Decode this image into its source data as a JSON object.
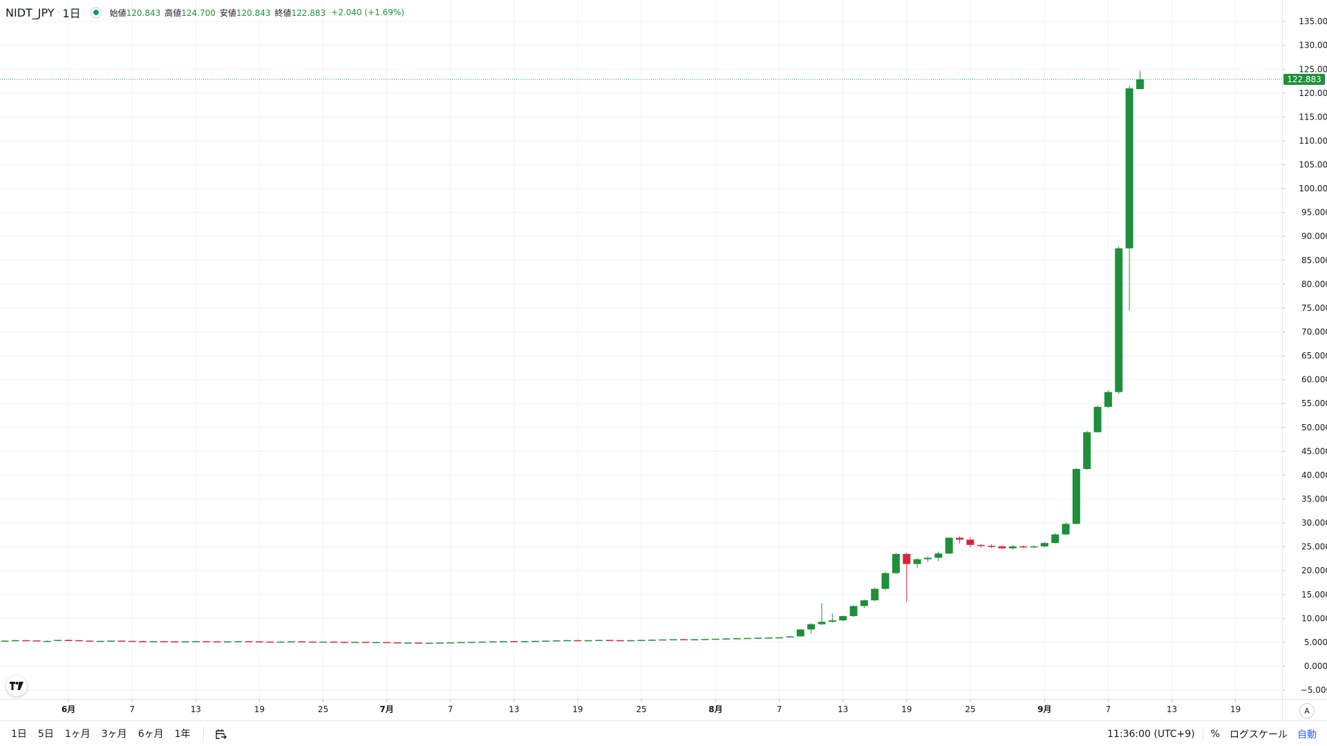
{
  "legend": {
    "symbol": "NIDT_JPY",
    "separator": "·",
    "interval": "1日",
    "open_label": "始値",
    "open_value": "120.843",
    "high_label": "高値",
    "high_value": "124.700",
    "low_label": "安値",
    "low_value": "120.843",
    "close_label": "終値",
    "close_value": "122.883",
    "change": "+2.040 (+1.69%)"
  },
  "colors": {
    "up": "#1e8f3a",
    "down": "#d7263d",
    "grid": "#f0f3fa",
    "axis_text": "#131722",
    "last_price": "#1e8f3a"
  },
  "bottom_bar": {
    "ranges": [
      "1日",
      "5日",
      "1ヶ月",
      "3ヶ月",
      "6ヶ月",
      "1年"
    ],
    "calendar_icon": "calendar-range-icon",
    "time": "11:36:00 (UTC+9)",
    "percent": "%",
    "log_scale": "ログスケール",
    "auto": "自動"
  },
  "axis_auto_label": "A",
  "chart_data": {
    "type": "candlestick",
    "title": "",
    "ylim": [
      -6,
      138
    ],
    "y_ticks": [
      "135.000",
      "130.000",
      "125.000",
      "120.000",
      "115.000",
      "110.000",
      "105.000",
      "100.000",
      "95.000",
      "90.000",
      "85.000",
      "80.000",
      "75.000",
      "70.000",
      "65.000",
      "60.000",
      "55.000",
      "50.000",
      "45.000",
      "40.000",
      "35.000",
      "30.000",
      "25.000",
      "20.000",
      "15.000",
      "10.000",
      "5.000",
      "0.000",
      "−5.000"
    ],
    "y_tick_values": [
      135,
      130,
      125,
      120,
      115,
      110,
      105,
      100,
      95,
      90,
      85,
      80,
      75,
      70,
      65,
      60,
      55,
      50,
      45,
      40,
      35,
      30,
      25,
      20,
      15,
      10,
      5,
      0,
      -5
    ],
    "x_ticks": [
      {
        "label": "6月",
        "index": 6,
        "bold": true
      },
      {
        "label": "7",
        "index": 12,
        "bold": false
      },
      {
        "label": "13",
        "index": 18,
        "bold": false
      },
      {
        "label": "19",
        "index": 24,
        "bold": false
      },
      {
        "label": "25",
        "index": 30,
        "bold": false
      },
      {
        "label": "7月",
        "index": 36,
        "bold": true
      },
      {
        "label": "7",
        "index": 42,
        "bold": false
      },
      {
        "label": "13",
        "index": 48,
        "bold": false
      },
      {
        "label": "19",
        "index": 54,
        "bold": false
      },
      {
        "label": "25",
        "index": 60,
        "bold": false
      },
      {
        "label": "8月",
        "index": 67,
        "bold": true
      },
      {
        "label": "7",
        "index": 73,
        "bold": false
      },
      {
        "label": "13",
        "index": 79,
        "bold": false
      },
      {
        "label": "19",
        "index": 85,
        "bold": false
      },
      {
        "label": "25",
        "index": 91,
        "bold": false
      },
      {
        "label": "9月",
        "index": 98,
        "bold": true
      },
      {
        "label": "7",
        "index": 104,
        "bold": false
      },
      {
        "label": "13",
        "index": 110,
        "bold": false
      },
      {
        "label": "19",
        "index": 116,
        "bold": false
      }
    ],
    "last_price": 122.883,
    "last_price_label": "122.883",
    "candles": [
      [
        5.3,
        5.4,
        5.1,
        5.35
      ],
      [
        5.35,
        5.5,
        5.25,
        5.45
      ],
      [
        5.45,
        5.5,
        5.3,
        5.4
      ],
      [
        5.4,
        5.45,
        5.2,
        5.25
      ],
      [
        5.25,
        5.35,
        5.15,
        5.3
      ],
      [
        5.3,
        5.55,
        5.25,
        5.5
      ],
      [
        5.5,
        5.6,
        5.4,
        5.45
      ],
      [
        5.45,
        5.5,
        5.3,
        5.35
      ],
      [
        5.35,
        5.4,
        5.2,
        5.25
      ],
      [
        5.25,
        5.35,
        5.2,
        5.3
      ],
      [
        5.3,
        5.4,
        5.2,
        5.35
      ],
      [
        5.35,
        5.4,
        5.25,
        5.3
      ],
      [
        5.3,
        5.35,
        5.2,
        5.25
      ],
      [
        5.25,
        5.3,
        5.15,
        5.2
      ],
      [
        5.2,
        5.3,
        5.1,
        5.25
      ],
      [
        5.25,
        5.3,
        5.15,
        5.2
      ],
      [
        5.2,
        5.25,
        5.1,
        5.15
      ],
      [
        5.15,
        5.25,
        5.1,
        5.2
      ],
      [
        5.2,
        5.3,
        5.1,
        5.25
      ],
      [
        5.25,
        5.3,
        5.15,
        5.2
      ],
      [
        5.2,
        5.25,
        5.1,
        5.15
      ],
      [
        5.15,
        5.25,
        5.1,
        5.2
      ],
      [
        5.2,
        5.3,
        5.15,
        5.25
      ],
      [
        5.25,
        5.3,
        5.15,
        5.2
      ],
      [
        5.2,
        5.25,
        5.1,
        5.15
      ],
      [
        5.15,
        5.2,
        5.05,
        5.1
      ],
      [
        5.1,
        5.2,
        5.05,
        5.15
      ],
      [
        5.15,
        5.25,
        5.1,
        5.2
      ],
      [
        5.2,
        5.25,
        5.1,
        5.15
      ],
      [
        5.15,
        5.2,
        5.05,
        5.1
      ],
      [
        5.1,
        5.2,
        5.05,
        5.15
      ],
      [
        5.15,
        5.2,
        5.05,
        5.1
      ],
      [
        5.1,
        5.15,
        5.0,
        5.05
      ],
      [
        5.05,
        5.15,
        5.0,
        5.1
      ],
      [
        5.1,
        5.15,
        4.95,
        5.0
      ],
      [
        5.0,
        5.1,
        4.9,
        5.05
      ],
      [
        5.05,
        5.1,
        4.95,
        5.0
      ],
      [
        5.0,
        5.05,
        4.85,
        4.9
      ],
      [
        4.9,
        5.0,
        4.85,
        4.95
      ],
      [
        4.95,
        5.0,
        4.8,
        4.85
      ],
      [
        4.85,
        4.95,
        4.8,
        4.9
      ],
      [
        4.9,
        5.0,
        4.85,
        4.95
      ],
      [
        4.95,
        5.05,
        4.9,
        5.0
      ],
      [
        5.0,
        5.1,
        4.95,
        5.05
      ],
      [
        5.05,
        5.15,
        5.0,
        5.1
      ],
      [
        5.1,
        5.2,
        5.05,
        5.15
      ],
      [
        5.15,
        5.25,
        5.1,
        5.2
      ],
      [
        5.2,
        5.3,
        5.15,
        5.25
      ],
      [
        5.25,
        5.3,
        5.15,
        5.2
      ],
      [
        5.2,
        5.3,
        5.15,
        5.25
      ],
      [
        5.25,
        5.35,
        5.2,
        5.3
      ],
      [
        5.3,
        5.4,
        5.25,
        5.35
      ],
      [
        5.35,
        5.45,
        5.3,
        5.4
      ],
      [
        5.4,
        5.5,
        5.35,
        5.45
      ],
      [
        5.45,
        5.5,
        5.35,
        5.4
      ],
      [
        5.4,
        5.5,
        5.35,
        5.45
      ],
      [
        5.45,
        5.55,
        5.4,
        5.5
      ],
      [
        5.5,
        5.55,
        5.4,
        5.45
      ],
      [
        5.45,
        5.5,
        5.35,
        5.4
      ],
      [
        5.4,
        5.5,
        5.35,
        5.45
      ],
      [
        5.45,
        5.55,
        5.4,
        5.5
      ],
      [
        5.5,
        5.6,
        5.45,
        5.55
      ],
      [
        5.55,
        5.65,
        5.5,
        5.6
      ],
      [
        5.6,
        5.7,
        5.55,
        5.65
      ],
      [
        5.65,
        5.7,
        5.55,
        5.6
      ],
      [
        5.6,
        5.7,
        5.55,
        5.65
      ],
      [
        5.65,
        5.75,
        5.6,
        5.7
      ],
      [
        5.7,
        5.8,
        5.65,
        5.75
      ],
      [
        5.75,
        5.85,
        5.7,
        5.8
      ],
      [
        5.8,
        5.9,
        5.75,
        5.85
      ],
      [
        5.85,
        5.95,
        5.8,
        5.9
      ],
      [
        5.9,
        6.0,
        5.85,
        5.95
      ],
      [
        5.95,
        6.05,
        5.9,
        6.0
      ],
      [
        6.0,
        6.1,
        5.95,
        6.05
      ],
      [
        6.05,
        6.3,
        6.0,
        6.25
      ],
      [
        6.25,
        7.8,
        6.2,
        7.7
      ],
      [
        7.7,
        9.0,
        6.8,
        8.8
      ],
      [
        8.8,
        13.2,
        8.6,
        9.3
      ],
      [
        9.3,
        11.0,
        9.1,
        9.6
      ],
      [
        9.6,
        10.6,
        9.4,
        10.5
      ],
      [
        10.5,
        12.8,
        10.3,
        12.6
      ],
      [
        12.6,
        14.0,
        12.2,
        13.8
      ],
      [
        13.8,
        16.5,
        13.6,
        16.2
      ],
      [
        16.2,
        19.8,
        15.9,
        19.5
      ],
      [
        19.5,
        23.7,
        19.3,
        23.5
      ],
      [
        23.5,
        23.8,
        13.5,
        21.4
      ],
      [
        21.4,
        22.6,
        20.6,
        22.4
      ],
      [
        22.4,
        23.0,
        21.9,
        22.7
      ],
      [
        22.7,
        24.0,
        22.0,
        23.6
      ],
      [
        23.6,
        27.0,
        23.5,
        26.9
      ],
      [
        26.9,
        27.2,
        25.7,
        26.5
      ],
      [
        26.5,
        27.0,
        24.9,
        25.4
      ],
      [
        25.4,
        25.6,
        24.8,
        25.2
      ],
      [
        25.2,
        25.5,
        24.7,
        25.1
      ],
      [
        25.1,
        25.3,
        24.5,
        24.7
      ],
      [
        24.7,
        25.4,
        24.4,
        25.1
      ],
      [
        25.1,
        25.3,
        24.7,
        24.9
      ],
      [
        24.9,
        25.3,
        24.7,
        25.1
      ],
      [
        25.1,
        26.0,
        24.9,
        25.8
      ],
      [
        25.8,
        27.9,
        25.7,
        27.6
      ],
      [
        27.6,
        30.2,
        27.5,
        29.8
      ],
      [
        29.8,
        41.5,
        29.7,
        41.3
      ],
      [
        41.3,
        49.3,
        41.1,
        49.0
      ],
      [
        49.0,
        54.6,
        48.9,
        54.3
      ],
      [
        54.3,
        57.8,
        54.1,
        57.4
      ],
      [
        57.4,
        87.9,
        57.0,
        87.5
      ],
      [
        87.5,
        121.5,
        74.5,
        121.0
      ],
      [
        120.843,
        124.7,
        120.843,
        122.883
      ]
    ]
  }
}
